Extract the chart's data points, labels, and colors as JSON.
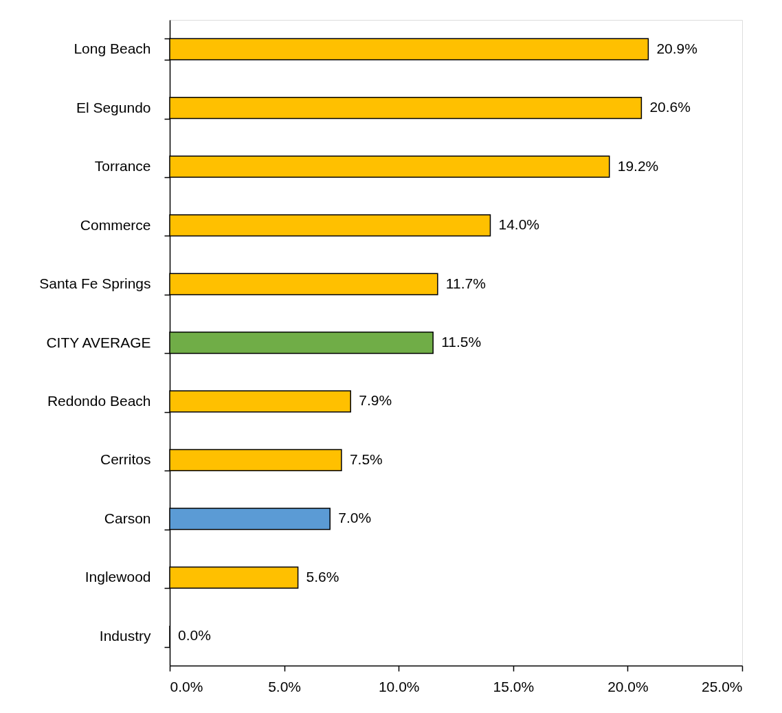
{
  "chart_data": {
    "type": "bar",
    "orientation": "horizontal",
    "categories": [
      "Long Beach",
      "El Segundo",
      "Torrance",
      "Commerce",
      "Santa Fe Springs",
      "CITY AVERAGE",
      "Redondo Beach",
      "Cerritos",
      "Carson",
      "Inglewood",
      "Industry"
    ],
    "values": [
      20.9,
      20.6,
      19.2,
      14.0,
      11.7,
      11.5,
      7.9,
      7.5,
      7.0,
      5.6,
      0.0
    ],
    "colors": [
      "#ffc000",
      "#ffc000",
      "#ffc000",
      "#ffc000",
      "#ffc000",
      "#70ad47",
      "#ffc000",
      "#ffc000",
      "#5b9bd5",
      "#ffc000",
      "#ffc000"
    ],
    "value_labels": [
      "20.9%",
      "20.6%",
      "19.2%",
      "14.0%",
      "11.7%",
      "11.5%",
      "7.9%",
      "7.5%",
      "7.0%",
      "5.6%",
      "0.0%"
    ],
    "xlim": [
      0,
      25
    ],
    "xticks": [
      {
        "value": 0,
        "label": "0.0%"
      },
      {
        "value": 5,
        "label": "5.0%"
      },
      {
        "value": 10,
        "label": "10.0%"
      },
      {
        "value": 15,
        "label": "15.0%"
      },
      {
        "value": 20,
        "label": "20.0%"
      },
      {
        "value": 25,
        "label": "25.0%"
      }
    ]
  }
}
